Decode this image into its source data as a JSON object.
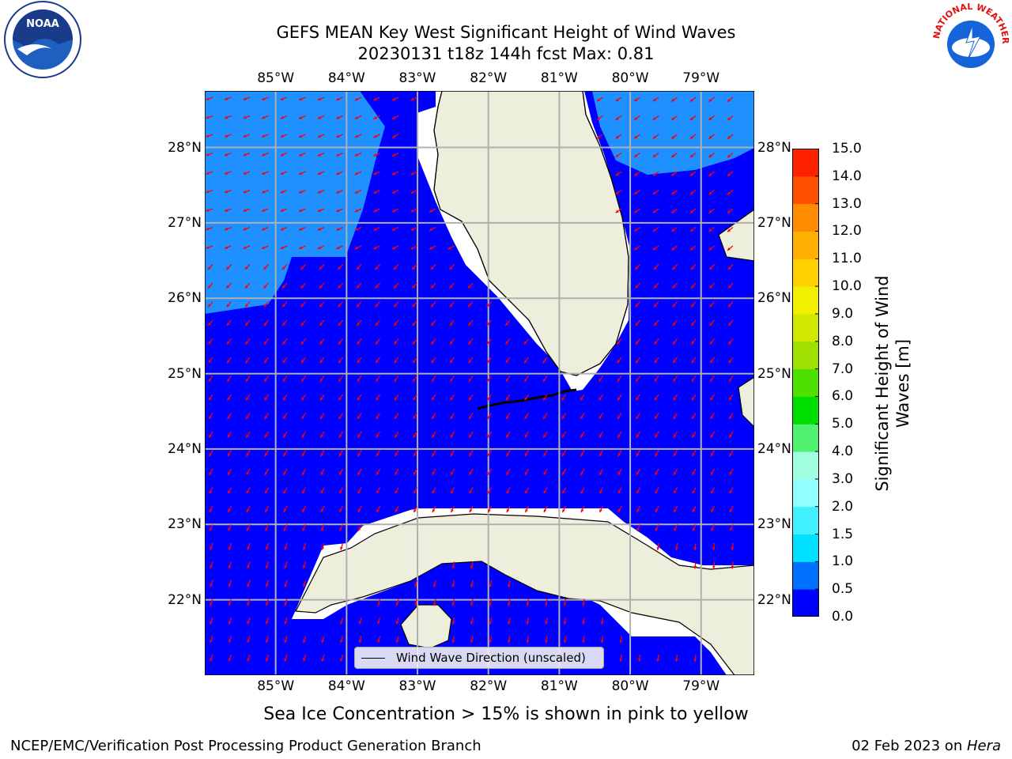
{
  "title": {
    "line1": "GEFS MEAN Key West Significant Height of Wind Waves",
    "line2": "20230131 t18z 144h fcst   Max: 0.81"
  },
  "map": {
    "lon_ticks": [
      "85°W",
      "84°W",
      "83°W",
      "82°W",
      "81°W",
      "80°W",
      "79°W"
    ],
    "lat_ticks": [
      "28°N",
      "27°N",
      "26°N",
      "25°N",
      "24°N",
      "23°N",
      "22°N"
    ],
    "lon_range": [
      -86.0,
      -78.25
    ],
    "lat_range": [
      21.0,
      28.75
    ],
    "grid": true,
    "colors": {
      "ocean_low": "#0000ff",
      "ocean_mid": "#1e90ff",
      "land": "#eeeedd",
      "arrow": "#ff0000",
      "gridline": "#b0b0b0"
    },
    "legend": {
      "label": "Wind Wave Direction (unscaled)",
      "placement": "bottom-center"
    }
  },
  "colorbar": {
    "label_line1": "Significant Height of Wind",
    "label_line2": "Waves [m]",
    "levels": [
      "0.0",
      "0.5",
      "1.0",
      "1.5",
      "2.0",
      "3.0",
      "4.0",
      "5.0",
      "6.0",
      "7.0",
      "8.0",
      "9.0",
      "10.0",
      "11.0",
      "12.0",
      "13.0",
      "14.0",
      "15.0"
    ],
    "colors": [
      "#0000ff",
      "#0070ff",
      "#00e0ff",
      "#40f0ff",
      "#90ffff",
      "#a0ffe0",
      "#50f070",
      "#00e000",
      "#50e000",
      "#a0e000",
      "#d0e800",
      "#f0f000",
      "#ffd000",
      "#ffb000",
      "#ff8c00",
      "#ff5000",
      "#ff2000"
    ]
  },
  "sea_ice_note": "Sea Ice Concentration > 15% is shown in pink to yellow",
  "footer": {
    "left": "NCEP/EMC/Verification Post Processing Product Generation Branch",
    "right_date": "02 Feb 2023 on ",
    "right_host": "Hera"
  },
  "logos": {
    "left": "NOAA",
    "right": "NATIONAL WEATHER SERVICE"
  }
}
